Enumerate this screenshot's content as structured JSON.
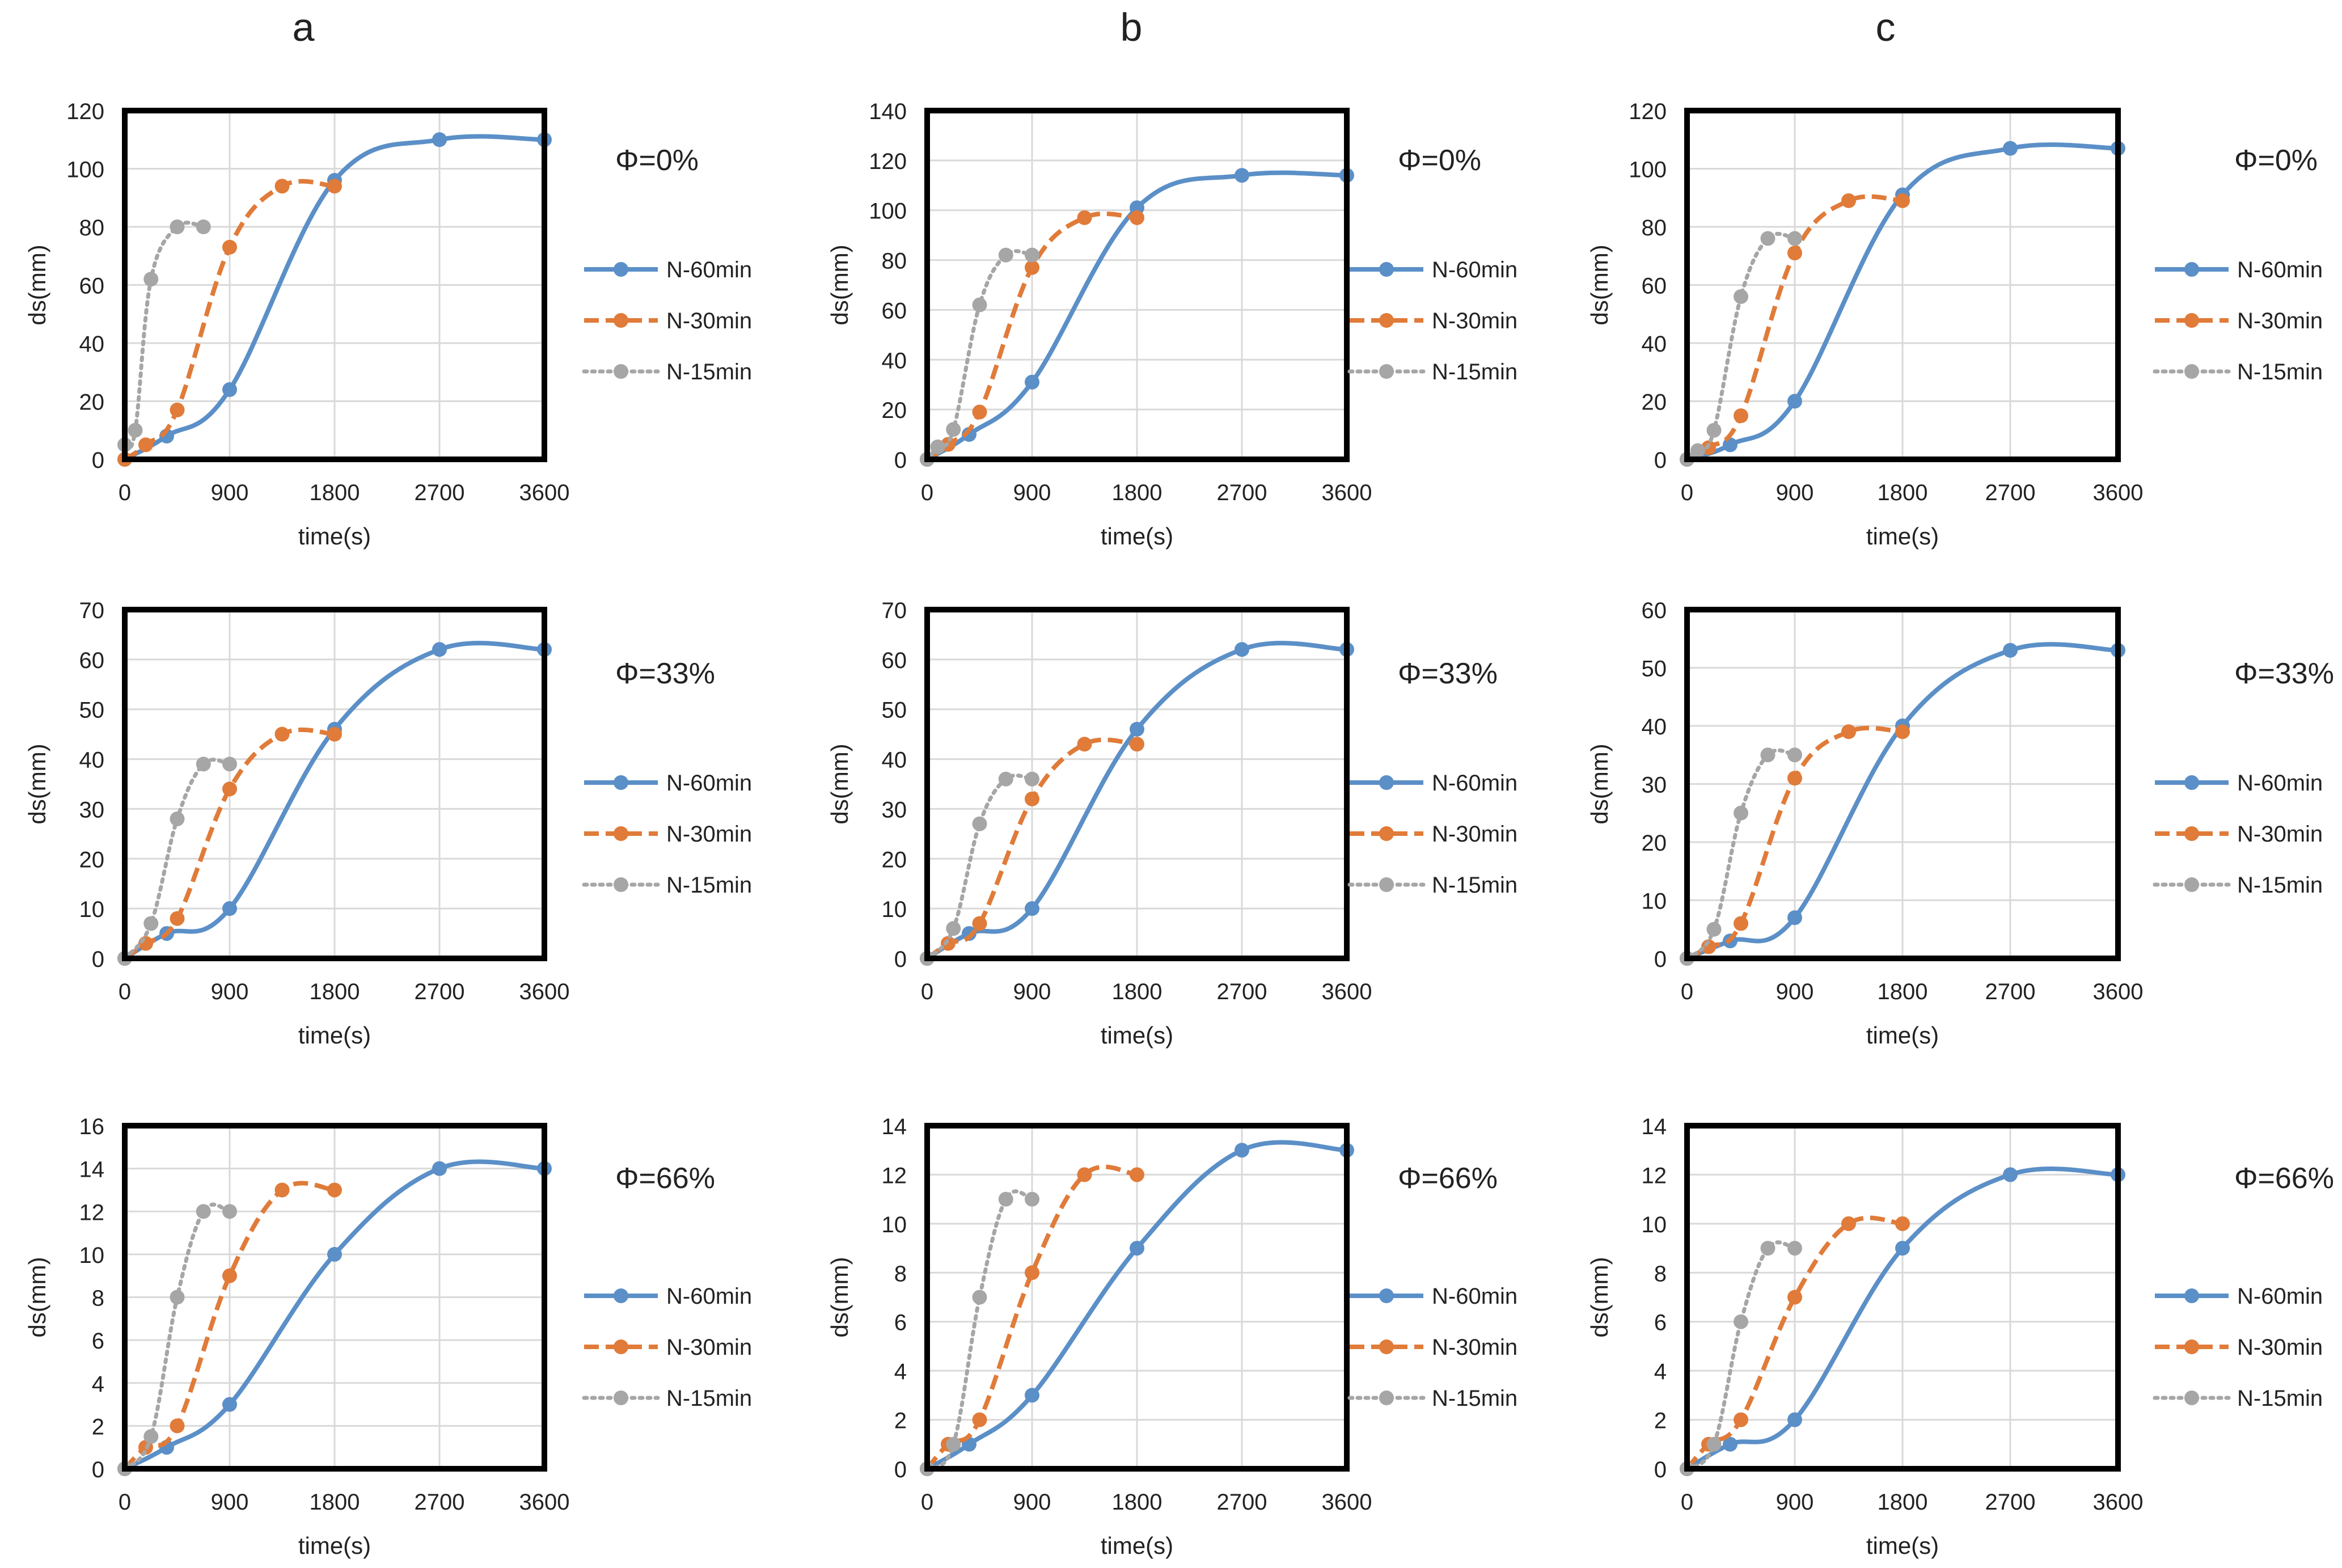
{
  "columns": [
    "a",
    "b",
    "c"
  ],
  "colors": {
    "N-60min": "#5b8fc7",
    "N-30min": "#e07b39",
    "N-15min": "#a6a6a6",
    "grid": "#d9d9d9",
    "frame": "#000000",
    "text": "#222222"
  },
  "chart_data": [
    {
      "type": "line",
      "column": "a",
      "row": 0,
      "annotation": "Φ=0%",
      "xlabel": "time(s)",
      "ylabel": "ds(mm)",
      "xlim": [
        0,
        3600
      ],
      "xticks": [
        0,
        900,
        1800,
        2700,
        3600
      ],
      "ylim": [
        0,
        120
      ],
      "yticks": [
        0,
        20,
        40,
        60,
        80,
        100,
        120
      ],
      "legend": "right",
      "series": [
        {
          "name": "N-60min",
          "style": "solid",
          "x": [
            0,
            360,
            900,
            1800,
            2700,
            3600
          ],
          "y": [
            0,
            8,
            24,
            96,
            110,
            110
          ]
        },
        {
          "name": "N-30min",
          "style": "dashed",
          "x": [
            0,
            180,
            450,
            900,
            1350,
            1800
          ],
          "y": [
            0,
            5,
            17,
            73,
            94,
            94
          ]
        },
        {
          "name": "N-15min",
          "style": "dotted",
          "x": [
            0,
            90,
            225,
            450,
            675
          ],
          "y": [
            5,
            10,
            62,
            80,
            80
          ]
        }
      ]
    },
    {
      "type": "line",
      "column": "b",
      "row": 0,
      "annotation": "Φ=0%",
      "xlabel": "time(s)",
      "ylabel": "ds(mm)",
      "xlim": [
        0,
        3600
      ],
      "xticks": [
        0,
        900,
        1800,
        2700,
        3600
      ],
      "ylim": [
        0,
        140
      ],
      "yticks": [
        0,
        20,
        40,
        60,
        80,
        100,
        120,
        140
      ],
      "legend": "right",
      "series": [
        {
          "name": "N-60min",
          "style": "solid",
          "x": [
            0,
            360,
            900,
            1800,
            2700,
            3600
          ],
          "y": [
            0,
            10,
            31,
            101,
            114,
            114
          ]
        },
        {
          "name": "N-30min",
          "style": "dashed",
          "x": [
            0,
            180,
            450,
            900,
            1350,
            1800
          ],
          "y": [
            0,
            6,
            19,
            77,
            97,
            97
          ]
        },
        {
          "name": "N-15min",
          "style": "dotted",
          "x": [
            0,
            90,
            225,
            450,
            675,
            900
          ],
          "y": [
            0,
            5,
            12,
            62,
            82,
            82
          ]
        }
      ]
    },
    {
      "type": "line",
      "column": "c",
      "row": 0,
      "annotation": "Φ=0%",
      "xlabel": "time(s)",
      "ylabel": "ds(mm)",
      "xlim": [
        0,
        3600
      ],
      "xticks": [
        0,
        900,
        1800,
        2700,
        3600
      ],
      "ylim": [
        0,
        120
      ],
      "yticks": [
        0,
        20,
        40,
        60,
        80,
        100,
        120
      ],
      "legend": "right",
      "series": [
        {
          "name": "N-60min",
          "style": "solid",
          "x": [
            0,
            360,
            900,
            1800,
            2700,
            3600
          ],
          "y": [
            0,
            5,
            20,
            91,
            107,
            107
          ]
        },
        {
          "name": "N-30min",
          "style": "dashed",
          "x": [
            0,
            180,
            450,
            900,
            1350,
            1800
          ],
          "y": [
            0,
            4,
            15,
            71,
            89,
            89
          ]
        },
        {
          "name": "N-15min",
          "style": "dotted",
          "x": [
            0,
            90,
            225,
            450,
            675,
            900
          ],
          "y": [
            0,
            3,
            10,
            56,
            76,
            76
          ]
        }
      ]
    },
    {
      "type": "line",
      "column": "a",
      "row": 1,
      "annotation": "Φ=33%",
      "xlabel": "time(s)",
      "ylabel": "ds(mm)",
      "xlim": [
        0,
        3600
      ],
      "xticks": [
        0,
        900,
        1800,
        2700,
        3600
      ],
      "ylim": [
        0,
        70
      ],
      "yticks": [
        0,
        10,
        20,
        30,
        40,
        50,
        60,
        70
      ],
      "legend": "right",
      "series": [
        {
          "name": "N-60min",
          "style": "solid",
          "x": [
            0,
            360,
            900,
            1800,
            2700,
            3600
          ],
          "y": [
            0,
            5,
            10,
            46,
            62,
            62
          ]
        },
        {
          "name": "N-30min",
          "style": "dashed",
          "x": [
            0,
            180,
            450,
            900,
            1350,
            1800
          ],
          "y": [
            0,
            3,
            8,
            34,
            45,
            45
          ]
        },
        {
          "name": "N-15min",
          "style": "dotted",
          "x": [
            0,
            225,
            450,
            675,
            900
          ],
          "y": [
            0,
            7,
            28,
            39,
            39
          ]
        }
      ]
    },
    {
      "type": "line",
      "column": "b",
      "row": 1,
      "annotation": "Φ=33%",
      "xlabel": "time(s)",
      "ylabel": "ds(mm)",
      "xlim": [
        0,
        3600
      ],
      "xticks": [
        0,
        900,
        1800,
        2700,
        3600
      ],
      "ylim": [
        0,
        70
      ],
      "yticks": [
        0,
        10,
        20,
        30,
        40,
        50,
        60,
        70
      ],
      "legend": "right",
      "series": [
        {
          "name": "N-60min",
          "style": "solid",
          "x": [
            0,
            360,
            900,
            1800,
            2700,
            3600
          ],
          "y": [
            0,
            5,
            10,
            46,
            62,
            62
          ]
        },
        {
          "name": "N-30min",
          "style": "dashed",
          "x": [
            0,
            180,
            450,
            900,
            1350,
            1800
          ],
          "y": [
            0,
            3,
            7,
            32,
            43,
            43
          ]
        },
        {
          "name": "N-15min",
          "style": "dotted",
          "x": [
            0,
            225,
            450,
            675,
            900
          ],
          "y": [
            0,
            6,
            27,
            36,
            36
          ]
        }
      ]
    },
    {
      "type": "line",
      "column": "c",
      "row": 1,
      "annotation": "Φ=33%",
      "xlabel": "time(s)",
      "ylabel": "ds(mm)",
      "xlim": [
        0,
        3600
      ],
      "xticks": [
        0,
        900,
        1800,
        2700,
        3600
      ],
      "ylim": [
        0,
        60
      ],
      "yticks": [
        0,
        10,
        20,
        30,
        40,
        50,
        60
      ],
      "legend": "right",
      "series": [
        {
          "name": "N-60min",
          "style": "solid",
          "x": [
            0,
            360,
            900,
            1800,
            2700,
            3600
          ],
          "y": [
            0,
            3,
            7,
            40,
            53,
            53
          ]
        },
        {
          "name": "N-30min",
          "style": "dashed",
          "x": [
            0,
            180,
            450,
            900,
            1350,
            1800
          ],
          "y": [
            0,
            2,
            6,
            31,
            39,
            39
          ]
        },
        {
          "name": "N-15min",
          "style": "dotted",
          "x": [
            0,
            225,
            450,
            675,
            900
          ],
          "y": [
            0,
            5,
            25,
            35,
            35
          ]
        }
      ]
    },
    {
      "type": "line",
      "column": "a",
      "row": 2,
      "annotation": "Φ=66%",
      "xlabel": "time(s)",
      "ylabel": "ds(mm)",
      "xlim": [
        0,
        3600
      ],
      "xticks": [
        0,
        900,
        1800,
        2700,
        3600
      ],
      "ylim": [
        0,
        16
      ],
      "yticks": [
        0,
        2,
        4,
        6,
        8,
        10,
        12,
        14,
        16
      ],
      "legend": "right",
      "series": [
        {
          "name": "N-60min",
          "style": "solid",
          "x": [
            0,
            360,
            900,
            1800,
            2700,
            3600
          ],
          "y": [
            0,
            1,
            3,
            10,
            14,
            14
          ]
        },
        {
          "name": "N-30min",
          "style": "dashed",
          "x": [
            0,
            180,
            450,
            900,
            1350,
            1800
          ],
          "y": [
            0,
            1,
            2,
            9,
            13,
            13
          ]
        },
        {
          "name": "N-15min",
          "style": "dotted",
          "x": [
            0,
            225,
            450,
            675,
            900
          ],
          "y": [
            0,
            1.5,
            8,
            12,
            12
          ]
        }
      ]
    },
    {
      "type": "line",
      "column": "b",
      "row": 2,
      "annotation": "Φ=66%",
      "xlabel": "time(s)",
      "ylabel": "ds(mm)",
      "xlim": [
        0,
        3600
      ],
      "xticks": [
        0,
        900,
        1800,
        2700,
        3600
      ],
      "ylim": [
        0,
        14
      ],
      "yticks": [
        0,
        2,
        4,
        6,
        8,
        10,
        12,
        14
      ],
      "legend": "right",
      "series": [
        {
          "name": "N-60min",
          "style": "solid",
          "x": [
            0,
            360,
            900,
            1800,
            2700,
            3600
          ],
          "y": [
            0,
            1,
            3,
            9,
            13,
            13
          ]
        },
        {
          "name": "N-30min",
          "style": "dashed",
          "x": [
            0,
            180,
            450,
            900,
            1350,
            1800
          ],
          "y": [
            0,
            1,
            2,
            8,
            12,
            12
          ]
        },
        {
          "name": "N-15min",
          "style": "dotted",
          "x": [
            0,
            225,
            450,
            675,
            900
          ],
          "y": [
            0,
            1,
            7,
            11,
            11
          ]
        }
      ]
    },
    {
      "type": "line",
      "column": "c",
      "row": 2,
      "annotation": "Φ=66%",
      "xlabel": "time(s)",
      "ylabel": "ds(mm)",
      "xlim": [
        0,
        3600
      ],
      "xticks": [
        0,
        900,
        1800,
        2700,
        3600
      ],
      "ylim": [
        0,
        14
      ],
      "yticks": [
        0,
        2,
        4,
        6,
        8,
        10,
        12,
        14
      ],
      "legend": "right",
      "series": [
        {
          "name": "N-60min",
          "style": "solid",
          "x": [
            0,
            360,
            900,
            1800,
            2700,
            3600
          ],
          "y": [
            0,
            1,
            2,
            9,
            12,
            12
          ]
        },
        {
          "name": "N-30min",
          "style": "dashed",
          "x": [
            0,
            180,
            450,
            900,
            1350,
            1800
          ],
          "y": [
            0,
            1,
            2,
            7,
            10,
            10
          ]
        },
        {
          "name": "N-15min",
          "style": "dotted",
          "x": [
            0,
            225,
            450,
            675,
            900
          ],
          "y": [
            0,
            1,
            6,
            9,
            9
          ]
        }
      ]
    }
  ]
}
